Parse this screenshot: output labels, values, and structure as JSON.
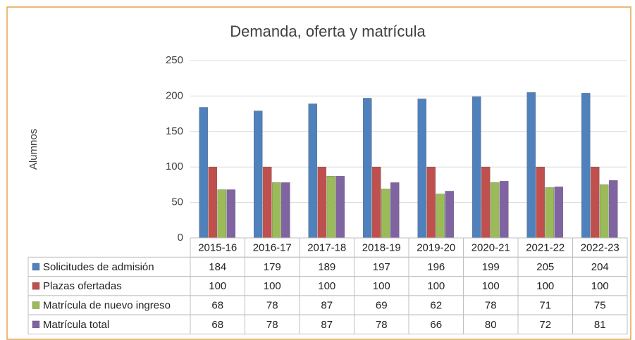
{
  "chart_data": {
    "type": "bar",
    "title": "Demanda, oferta y matrícula",
    "y_label": "Alumnos",
    "categories": [
      "2015-16",
      "2016-17",
      "2017-18",
      "2018-19",
      "2019-20",
      "2020-21",
      "2021-22",
      "2022-23"
    ],
    "series": [
      {
        "name": "Solicitudes de admisión",
        "color": "#4f81bd",
        "values": [
          184,
          179,
          189,
          197,
          196,
          199,
          205,
          204
        ]
      },
      {
        "name": "Plazas ofertadas",
        "color": "#c0504d",
        "values": [
          100,
          100,
          100,
          100,
          100,
          100,
          100,
          100
        ]
      },
      {
        "name": "Matrícula de nuevo ingreso",
        "color": "#9bbb59",
        "values": [
          68,
          78,
          87,
          69,
          62,
          78,
          71,
          75
        ]
      },
      {
        "name": "Matrícula total",
        "color": "#8064a2",
        "values": [
          68,
          78,
          87,
          78,
          66,
          80,
          72,
          81
        ]
      }
    ],
    "ylim": [
      0,
      250
    ],
    "yticks": [
      0,
      50,
      100,
      150,
      200,
      250
    ],
    "grid": true,
    "data_table": true
  }
}
